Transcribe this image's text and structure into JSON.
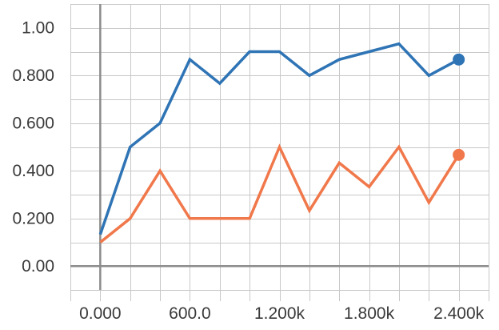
{
  "chart_data": {
    "type": "line",
    "x": [
      0,
      200,
      400,
      600,
      800,
      1000,
      1200,
      1400,
      1600,
      1800,
      2000,
      2200,
      2400
    ],
    "series": [
      {
        "color": "#2f74b5",
        "values": [
          0.133,
          0.5,
          0.6,
          0.867,
          0.767,
          0.9,
          0.9,
          0.8,
          0.867,
          0.9,
          0.933,
          0.8,
          0.867
        ]
      },
      {
        "color": "#f0784b",
        "values": [
          0.1,
          0.2,
          0.4,
          0.2,
          0.2,
          0.2,
          0.5,
          0.233,
          0.433,
          0.333,
          0.5,
          0.267,
          0.467
        ]
      }
    ],
    "xlim": [
      -200,
      2600
    ],
    "ylim": [
      -0.1,
      1.1
    ],
    "x_ticks": [
      {
        "value": 0,
        "label": "0.000"
      },
      {
        "value": 600,
        "label": "600.0"
      },
      {
        "value": 1200,
        "label": "1.200k"
      },
      {
        "value": 1800,
        "label": "1.800k"
      },
      {
        "value": 2400,
        "label": "2.400k"
      }
    ],
    "y_ticks": [
      {
        "value": 0,
        "label": "0.00"
      },
      {
        "value": 0.2,
        "label": "0.200"
      },
      {
        "value": 0.4,
        "label": "0.400"
      },
      {
        "value": 0.6,
        "label": "0.600"
      },
      {
        "value": 0.8,
        "label": "0.800"
      },
      {
        "value": 1.0,
        "label": "1.00"
      }
    ],
    "x_grid_step": 200,
    "y_grid_step": 0.1,
    "grid": true,
    "title": "",
    "xlabel": "",
    "ylabel": ""
  }
}
